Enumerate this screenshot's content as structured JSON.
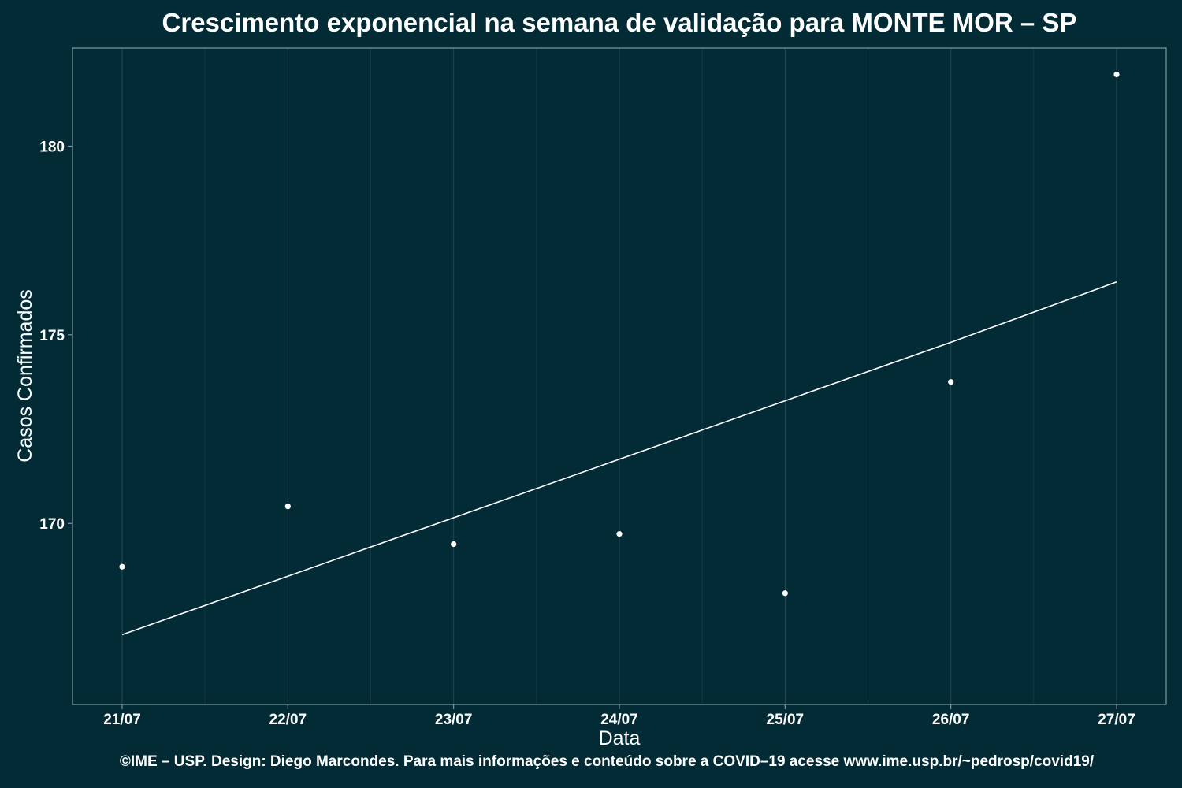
{
  "chart_data": {
    "type": "scatter",
    "title": "Crescimento exponencial na semana de validação para MONTE MOR – SP",
    "xlabel": "Data",
    "ylabel": "Casos Confirmados",
    "categories": [
      "21/07",
      "22/07",
      "23/07",
      "24/07",
      "25/07",
      "26/07",
      "27/07"
    ],
    "series": [
      {
        "kind": "points",
        "values": [
          168.85,
          170.45,
          169.45,
          169.72,
          168.15,
          173.75,
          181.9
        ]
      },
      {
        "kind": "trend-line",
        "values": [
          167.05,
          168.6,
          170.15,
          171.7,
          173.25,
          174.8,
          176.4
        ]
      }
    ],
    "yticks": [
      170,
      175,
      180
    ],
    "ylim": [
      165.2,
      182.6
    ],
    "grid": "vertical only",
    "legend": "none"
  },
  "footer": "©IME – USP. Design: Diego Marcondes. Para mais informações e conteúdo sobre a COVID–19 acesse www.ime.usp.br/~pedrosp/covid19/"
}
